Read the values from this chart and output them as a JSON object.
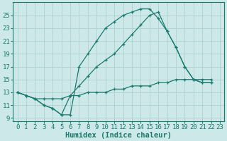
{
  "line1_x": [
    0,
    1,
    2,
    3,
    4,
    5,
    6,
    7,
    8,
    9,
    10,
    11,
    12,
    13,
    14,
    15,
    16,
    17,
    18,
    19,
    20,
    21,
    22,
    23
  ],
  "line1_y": [
    13,
    12.5,
    12,
    11,
    10.5,
    9.5,
    9.5,
    17,
    19,
    21,
    23,
    24,
    25,
    25.5,
    26,
    26,
    24.5,
    22.5,
    20,
    17,
    15,
    14.5,
    14.5,
    null
  ],
  "line2_x": [
    0,
    1,
    2,
    3,
    4,
    5,
    6,
    7,
    8,
    9,
    10,
    11,
    12,
    13,
    14,
    15,
    16,
    17,
    18,
    19,
    20,
    21,
    22,
    23
  ],
  "line2_y": [
    13,
    12.5,
    12,
    11,
    10.5,
    9.5,
    12.5,
    14,
    15.5,
    17,
    18,
    19,
    20.5,
    22,
    23.5,
    25,
    25.5,
    22.5,
    20,
    17,
    15,
    14.5,
    14.5,
    null
  ],
  "line3_x": [
    0,
    1,
    2,
    3,
    4,
    5,
    6,
    7,
    8,
    9,
    10,
    11,
    12,
    13,
    14,
    15,
    16,
    17,
    18,
    19,
    20,
    21,
    22,
    23
  ],
  "line3_y": [
    13,
    12.5,
    12,
    12,
    12,
    12,
    12.5,
    12.5,
    13,
    13,
    13,
    13.5,
    13.5,
    14,
    14,
    14,
    14.5,
    14.5,
    15,
    15,
    15,
    15,
    15,
    null
  ],
  "line_color": "#1a7a6e",
  "bg_color": "#cce8e8",
  "grid_color": "#b0d0d0",
  "xlabel": "Humidex (Indice chaleur)",
  "xlim": [
    -0.5,
    23.5
  ],
  "ylim": [
    8.5,
    27
  ],
  "xticks": [
    0,
    1,
    2,
    3,
    4,
    5,
    6,
    7,
    8,
    9,
    10,
    11,
    12,
    13,
    14,
    15,
    16,
    17,
    18,
    19,
    20,
    21,
    22,
    23
  ],
  "yticks": [
    9,
    11,
    13,
    15,
    17,
    19,
    21,
    23,
    25
  ],
  "tick_fontsize": 6.5,
  "label_fontsize": 7.5
}
